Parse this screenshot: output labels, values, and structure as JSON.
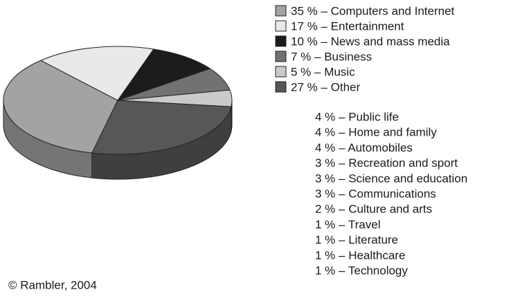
{
  "chart_data": {
    "type": "pie",
    "categories": [
      "35 % – Computers and Internet",
      "17 % – Entertainment",
      "10 % – News and mass media",
      "7 % – Business",
      "5 % – Music",
      "27 % – Other"
    ],
    "values": [
      35,
      17,
      10,
      7,
      5,
      27
    ],
    "colors": [
      "#a3a3a3",
      "#e9e9e9",
      "#1c1c1c",
      "#727272",
      "#cacaca",
      "#575757"
    ],
    "other_breakdown": [
      "4 % – Public life",
      "4 % – Home and family",
      "4 % – Automobiles",
      "3 % – Recreation and sport",
      "3 % – Science and education",
      "3 % – Communications",
      "2 % – Culture and arts",
      "1 % – Travel",
      "1 % – Literature",
      "1 % – Healthcare",
      "1 % – Technology"
    ],
    "source": "© Rambler, 2004"
  }
}
